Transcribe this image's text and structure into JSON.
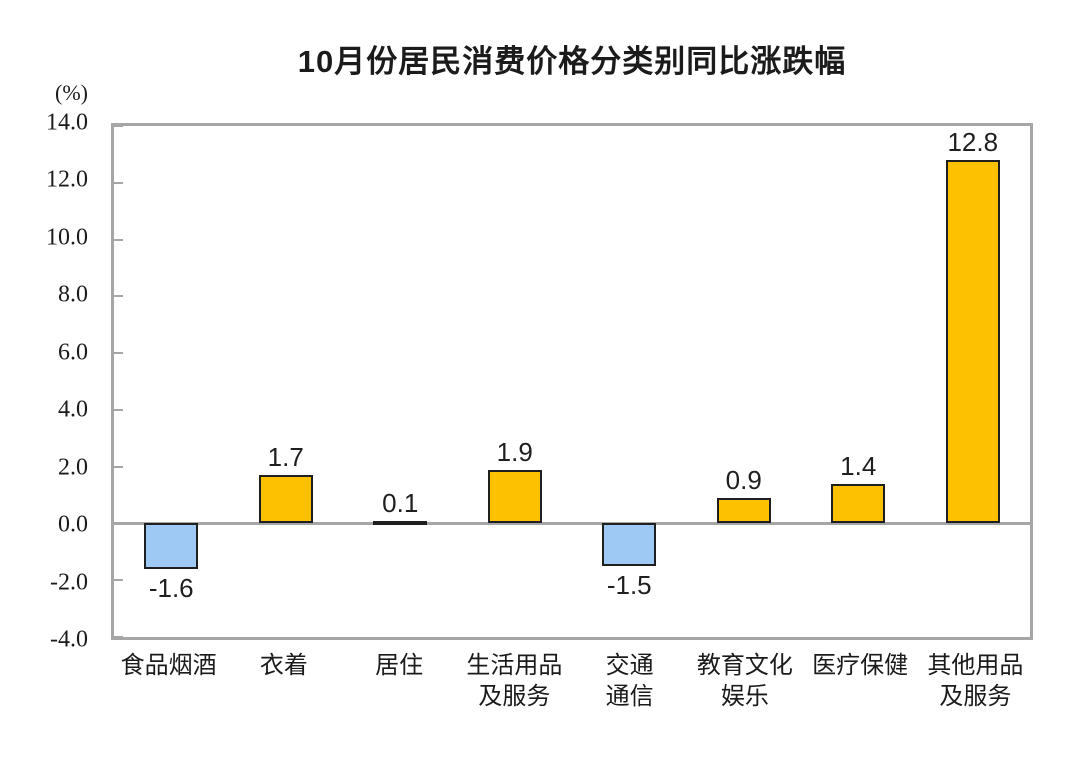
{
  "colors": {
    "positive_bar": "#FDC101",
    "negative_bar": "#9DC9F4",
    "bar_border": "#1F1F1F",
    "axis_gray": "#A6A6A6",
    "text": "#1B1B1B"
  },
  "chart_data": {
    "type": "bar",
    "title": "10月份居民消费价格分类别同比涨跌幅",
    "ylabel": "(%)",
    "xlabel": "",
    "categories": [
      "食品烟酒",
      "衣着",
      "居住",
      "生活用品\n及服务",
      "交通\n通信",
      "教育文化\n娱乐",
      "医疗保健",
      "其他用品\n及服务"
    ],
    "values": [
      -1.6,
      1.7,
      0.1,
      1.9,
      -1.5,
      0.9,
      1.4,
      12.8
    ],
    "value_labels": [
      "-1.6",
      "1.7",
      "0.1",
      "1.9",
      "-1.5",
      "0.9",
      "1.4",
      "12.8"
    ],
    "ylim": [
      -4.0,
      14.0
    ],
    "y_ticks": [
      14.0,
      12.0,
      10.0,
      8.0,
      6.0,
      4.0,
      2.0,
      0.0,
      -2.0,
      -4.0
    ],
    "y_tick_labels": [
      "14.0",
      "12.0",
      "10.0",
      "8.0",
      "6.0",
      "4.0",
      "2.0",
      "0.0",
      "-2.0",
      "-4.0"
    ],
    "grid": false,
    "legend": "none",
    "bar_color_rule": "positive bars golden, negative bars light blue"
  }
}
